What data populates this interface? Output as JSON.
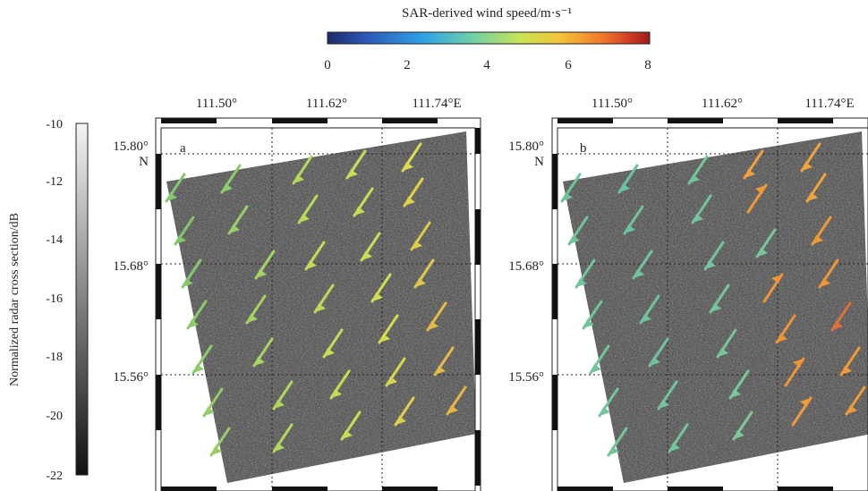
{
  "colorbar_top": {
    "title": "SAR-derived wind speed/m·s⁻¹",
    "ticks": [
      "0",
      "2",
      "4",
      "6",
      "8"
    ],
    "range": [
      0,
      8
    ],
    "colors": [
      "#1f2a6b",
      "#2b58b8",
      "#2fa3e6",
      "#6fd0a6",
      "#c8e354",
      "#f3c53a",
      "#f07a2a",
      "#d23a26",
      "#9a1b1b"
    ]
  },
  "colorbar_left": {
    "label": "Normalized radar cross section/dB",
    "ticks": [
      "-10",
      "-12",
      "-14",
      "-16",
      "-18",
      "-20",
      "-22"
    ],
    "range": [
      -22,
      -10
    ],
    "colors": [
      "#111111",
      "#f4f4f4"
    ]
  },
  "panels": [
    {
      "letter": "a",
      "lon_labels": [
        "111.50°",
        "111.62°",
        "111.74°E"
      ],
      "lat_labels": [
        "15.80°",
        "15.68°",
        "15.56°"
      ],
      "lat_suffix": "N"
    },
    {
      "letter": "b",
      "lon_labels": [
        "111.50°",
        "111.62°",
        "111.74°E"
      ],
      "lat_labels": [
        "15.80°",
        "15.68°",
        "15.56°"
      ],
      "lat_suffix": "N"
    }
  ]
}
